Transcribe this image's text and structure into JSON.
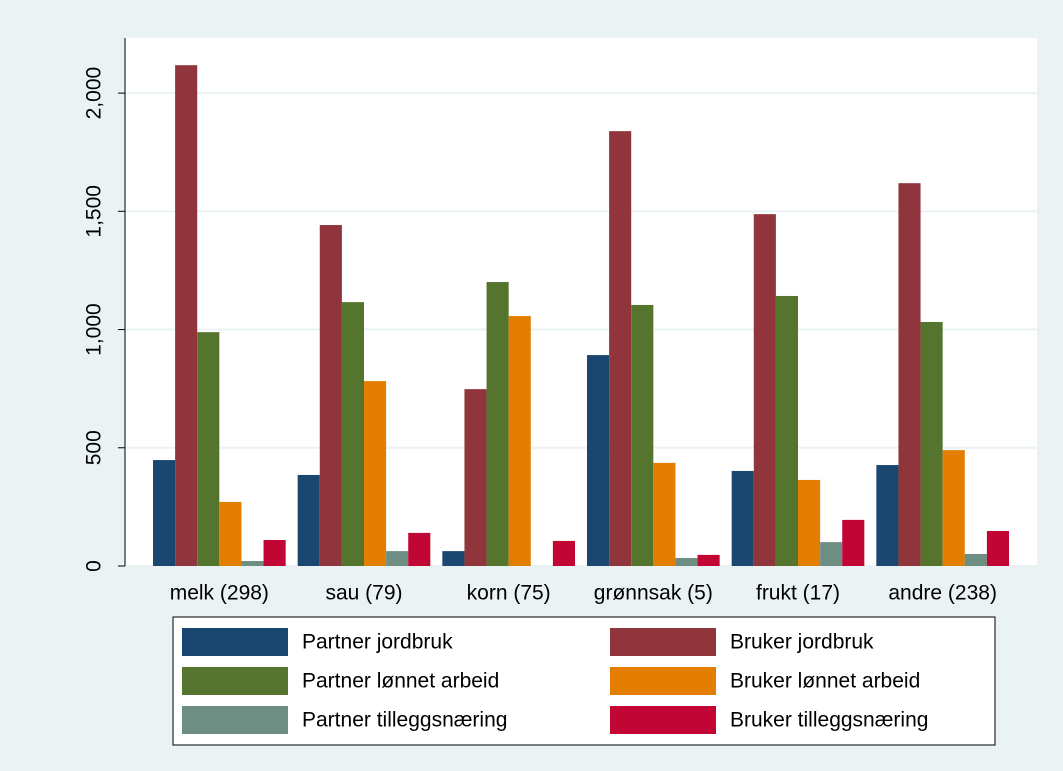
{
  "chart_data": {
    "type": "bar",
    "categories": [
      "melk (298)",
      "sau (79)",
      "korn (75)",
      "grønnsak (5)",
      "frukt (17)",
      "andre (238)"
    ],
    "series": [
      {
        "name": "Partner jordbruk",
        "color": "#1a476f",
        "values": [
          448,
          385,
          63,
          892,
          402,
          427
        ]
      },
      {
        "name": "Bruker jordbruk",
        "color": "#90353b",
        "values": [
          2118,
          1442,
          748,
          1839,
          1488,
          1619
        ]
      },
      {
        "name": "Partner lønnet arbeid",
        "color": "#55752f",
        "values": [
          989,
          1116,
          1201,
          1104,
          1142,
          1032
        ]
      },
      {
        "name": "Bruker lønnet arbeid",
        "color": "#e37e00",
        "values": [
          271,
          782,
          1057,
          436,
          364,
          490
        ]
      },
      {
        "name": "Partner tilleggsnæring",
        "color": "#6e8e84",
        "values": [
          21,
          63,
          0,
          34,
          101,
          51
        ]
      },
      {
        "name": "Bruker tilleggsnæring",
        "color": "#c10534",
        "values": [
          110,
          140,
          106,
          47,
          195,
          148
        ]
      }
    ],
    "ylim": [
      0,
      2233
    ],
    "yticks": [
      0,
      500,
      {
        "value": 1000,
        "label": "1,000"
      },
      {
        "value": 1500,
        "label": "1,500"
      },
      {
        "value": 2000,
        "label": "2,000"
      }
    ],
    "grid": true
  }
}
